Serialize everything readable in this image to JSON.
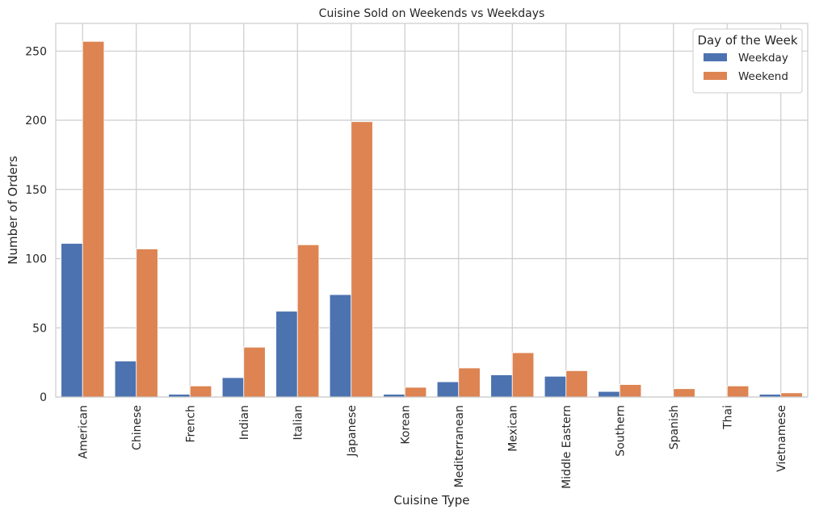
{
  "chart_data": {
    "type": "bar",
    "title": "Cuisine Sold on Weekends vs Weekdays",
    "xlabel": "Cuisine Type",
    "ylabel": "Number of Orders",
    "ylim": [
      0,
      270
    ],
    "yticks": [
      0,
      50,
      100,
      150,
      200,
      250
    ],
    "grid": true,
    "legend_title": "Day of the Week",
    "legend_position": "top-right",
    "categories": [
      "American",
      "Chinese",
      "French",
      "Indian",
      "Italian",
      "Japanese",
      "Korean",
      "Mediterranean",
      "Mexican",
      "Middle Eastern",
      "Southern",
      "Spanish",
      "Thai",
      "Vietnamese"
    ],
    "series": [
      {
        "name": "Weekday",
        "color": "#4c72b0",
        "values": [
          111,
          26,
          2,
          14,
          62,
          74,
          2,
          11,
          16,
          15,
          4,
          0,
          0,
          2
        ]
      },
      {
        "name": "Weekend",
        "color": "#dd8452",
        "values": [
          257,
          107,
          8,
          36,
          110,
          199,
          7,
          21,
          32,
          19,
          9,
          6,
          8,
          3
        ]
      }
    ]
  }
}
